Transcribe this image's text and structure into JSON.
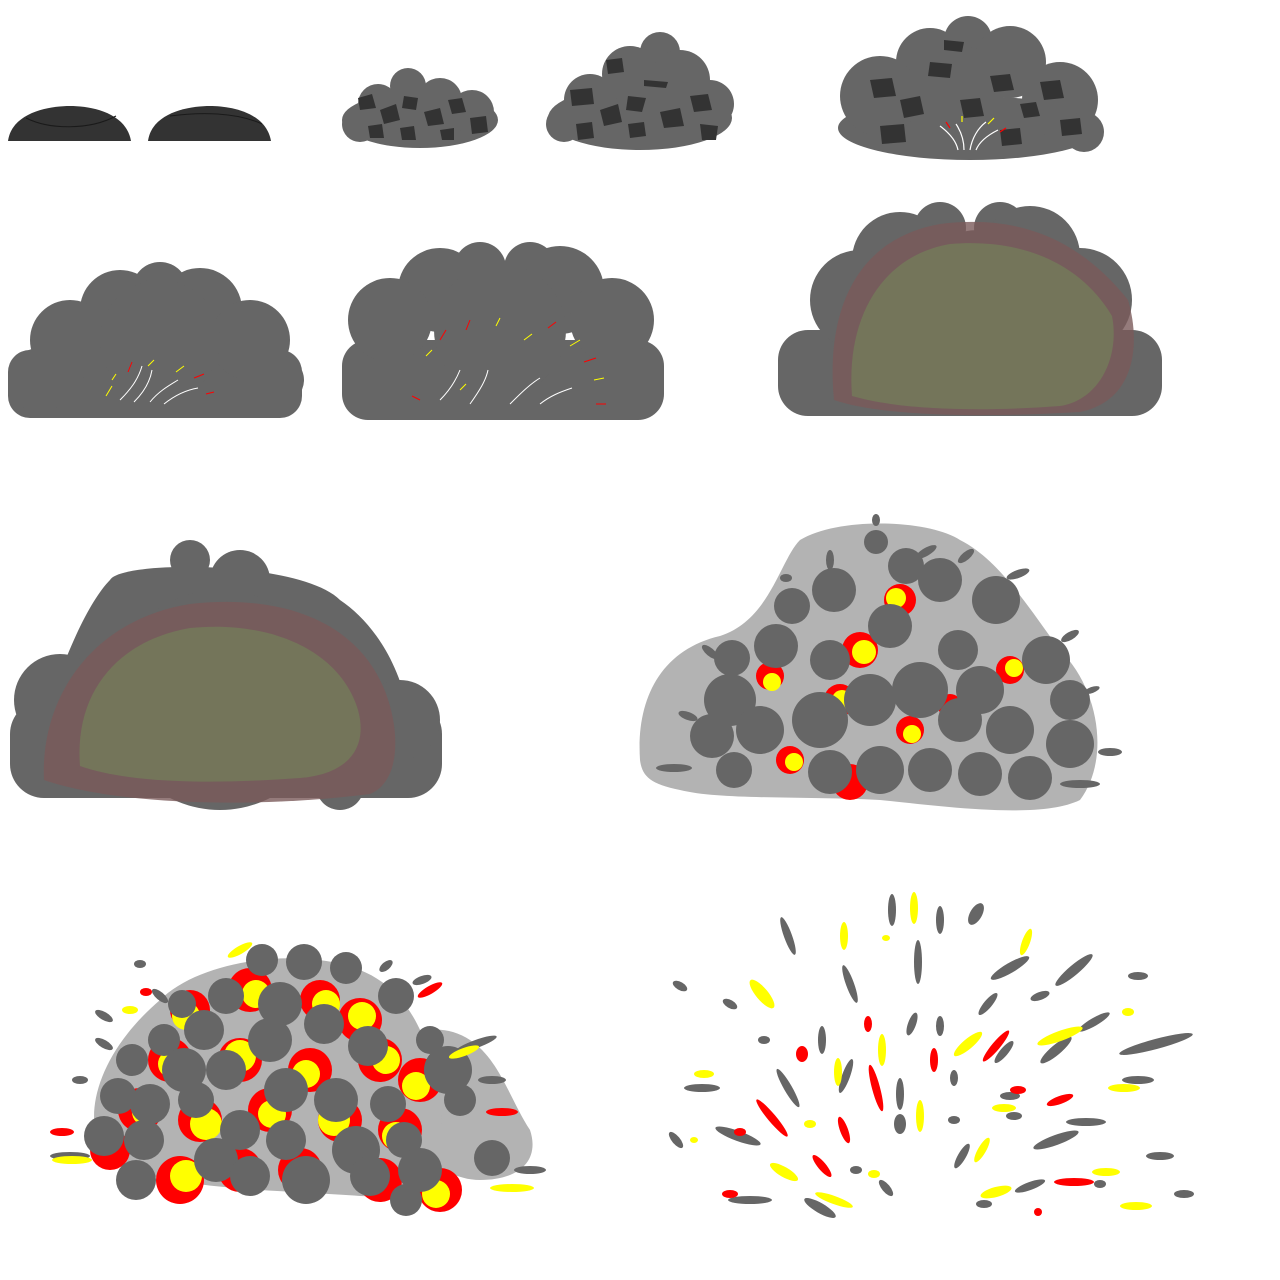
{
  "sheet": {
    "type": "explosion-sprite-sheet",
    "frame_count": 12
  },
  "colors": {
    "background": "#ffffff",
    "dome": "#333333",
    "smoke": "#666666",
    "smoke_light": "#b3b3b3",
    "debris": "#333333",
    "glow_red": "#7a5a5a",
    "glow_core": "#74755a",
    "fire_red": "#ff0000",
    "fire_yellow": "#ffff00",
    "spark": "#ffffff"
  },
  "frames": [
    {
      "id": 1,
      "kind": "dome"
    },
    {
      "id": 2,
      "kind": "dome"
    },
    {
      "id": 3,
      "kind": "rubble-small"
    },
    {
      "id": 4,
      "kind": "rubble-medium"
    },
    {
      "id": 5,
      "kind": "rubble-large-sparks"
    },
    {
      "id": 6,
      "kind": "smoke-sparks"
    },
    {
      "id": 7,
      "kind": "smoke-sparks-wide"
    },
    {
      "id": 8,
      "kind": "smoke-glow"
    },
    {
      "id": 9,
      "kind": "smoke-glow-large"
    },
    {
      "id": 10,
      "kind": "fire-cloud"
    },
    {
      "id": 11,
      "kind": "fire-burst"
    },
    {
      "id": 12,
      "kind": "debris-scatter"
    }
  ]
}
